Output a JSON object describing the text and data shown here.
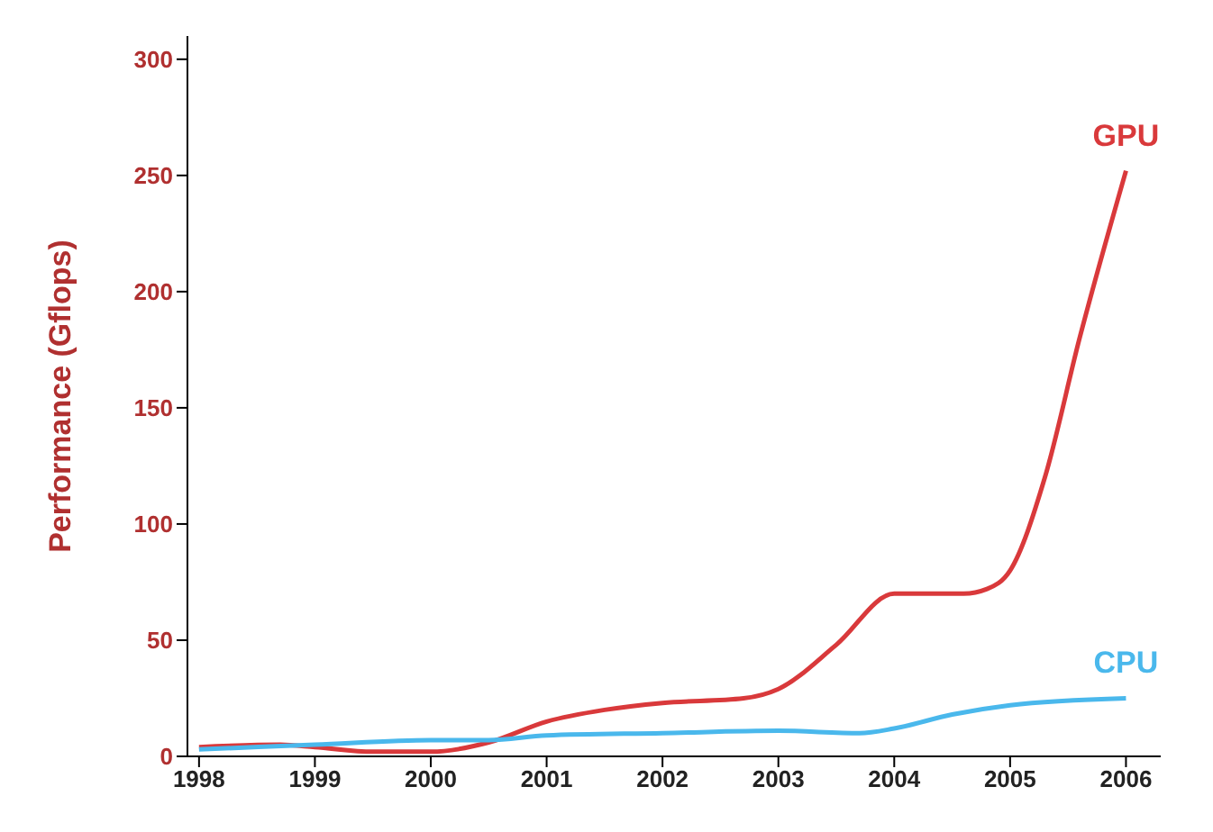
{
  "chart_data": {
    "type": "line",
    "ylabel": "Performance (Gflops)",
    "xlim": [
      1997.9,
      2006.3
    ],
    "xticks": [
      1998,
      1999,
      2000,
      2001,
      2002,
      2003,
      2004,
      2005,
      2006
    ],
    "ylim": [
      0,
      310
    ],
    "yticks": [
      0,
      50,
      100,
      150,
      200,
      250,
      300
    ],
    "grid": false,
    "legend": false,
    "marker": "none",
    "line_style": "solid",
    "series": [
      {
        "name": "GPU",
        "color": "#d9393b",
        "x": [
          1998,
          1998.7,
          1999,
          1999.5,
          2000,
          2000.5,
          2001,
          2001.5,
          2002,
          2002.7,
          2003,
          2003.5,
          2004,
          2004.6,
          2004.8,
          2005,
          2005.3,
          2005.6,
          2006
        ],
        "values": [
          4,
          5,
          4,
          2,
          2,
          6,
          15,
          20,
          23,
          25,
          29,
          48,
          70,
          70,
          72,
          80,
          120,
          180,
          252
        ]
      },
      {
        "name": "CPU",
        "color": "#4ab8ec",
        "x": [
          1998,
          1999,
          2000,
          2000.5,
          2001,
          2002,
          2003,
          2003.7,
          2004,
          2004.5,
          2005,
          2006
        ],
        "values": [
          3,
          5,
          7,
          7,
          9,
          10,
          11,
          10,
          12,
          18,
          22,
          25
        ]
      }
    ]
  }
}
